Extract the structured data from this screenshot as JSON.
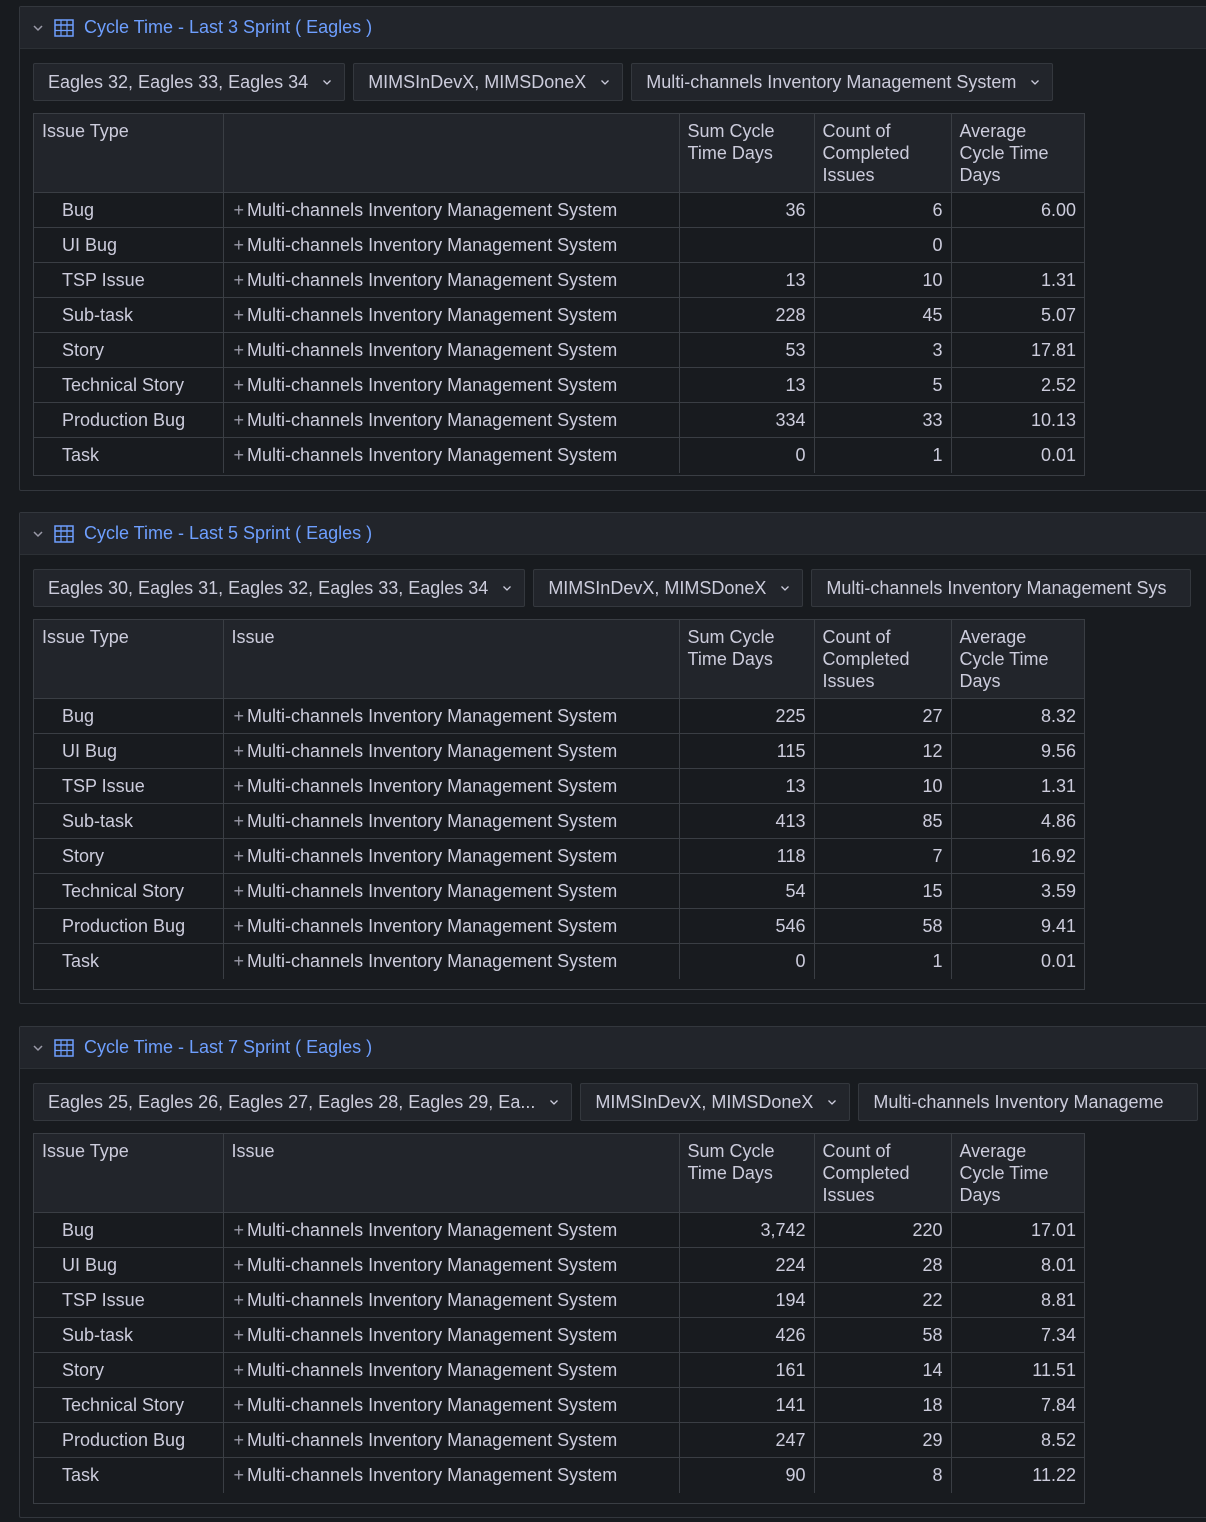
{
  "panels": [
    {
      "title": "Cycle Time - Last 3 Sprint ( Eagles )",
      "filters": [
        "Eagles 32, Eagles 33, Eagles 34",
        "MIMSInDevX, MIMSDoneX",
        "Multi-channels Inventory Management System"
      ],
      "columns": [
        "Issue Type",
        "",
        "Sum Cycle Time Days",
        "Count of Completed Issues",
        "Average Cycle Time Days"
      ],
      "rows": [
        {
          "type": "Bug",
          "issue": "Multi-channels Inventory Management System",
          "sum": "36",
          "count": "6",
          "avg": "6.00"
        },
        {
          "type": "UI Bug",
          "issue": "Multi-channels Inventory Management System",
          "sum": "",
          "count": "0",
          "avg": ""
        },
        {
          "type": "TSP Issue",
          "issue": "Multi-channels Inventory Management System",
          "sum": "13",
          "count": "10",
          "avg": "1.31"
        },
        {
          "type": "Sub-task",
          "issue": "Multi-channels Inventory Management System",
          "sum": "228",
          "count": "45",
          "avg": "5.07"
        },
        {
          "type": "Story",
          "issue": "Multi-channels Inventory Management System",
          "sum": "53",
          "count": "3",
          "avg": "17.81"
        },
        {
          "type": "Technical Story",
          "issue": "Multi-channels Inventory Management System",
          "sum": "13",
          "count": "5",
          "avg": "2.52"
        },
        {
          "type": "Production Bug",
          "issue": "Multi-channels Inventory Management System",
          "sum": "334",
          "count": "33",
          "avg": "10.13"
        },
        {
          "type": "Task",
          "issue": "Multi-channels Inventory Management System",
          "sum": "0",
          "count": "1",
          "avg": "0.01"
        }
      ]
    },
    {
      "title": "Cycle Time - Last 5 Sprint ( Eagles )",
      "filters": [
        "Eagles 30, Eagles 31, Eagles 32, Eagles 33, Eagles 34",
        "MIMSInDevX, MIMSDoneX",
        "Multi-channels Inventory Management Sys"
      ],
      "columns": [
        "Issue Type",
        "Issue",
        "Sum Cycle Time Days",
        "Count of Completed Issues",
        "Average Cycle Time Days"
      ],
      "rows": [
        {
          "type": "Bug",
          "issue": "Multi-channels Inventory Management System",
          "sum": "225",
          "count": "27",
          "avg": "8.32"
        },
        {
          "type": "UI Bug",
          "issue": "Multi-channels Inventory Management System",
          "sum": "115",
          "count": "12",
          "avg": "9.56"
        },
        {
          "type": "TSP Issue",
          "issue": "Multi-channels Inventory Management System",
          "sum": "13",
          "count": "10",
          "avg": "1.31"
        },
        {
          "type": "Sub-task",
          "issue": "Multi-channels Inventory Management System",
          "sum": "413",
          "count": "85",
          "avg": "4.86"
        },
        {
          "type": "Story",
          "issue": "Multi-channels Inventory Management System",
          "sum": "118",
          "count": "7",
          "avg": "16.92"
        },
        {
          "type": "Technical Story",
          "issue": "Multi-channels Inventory Management System",
          "sum": "54",
          "count": "15",
          "avg": "3.59"
        },
        {
          "type": "Production Bug",
          "issue": "Multi-channels Inventory Management System",
          "sum": "546",
          "count": "58",
          "avg": "9.41"
        },
        {
          "type": "Task",
          "issue": "Multi-channels Inventory Management System",
          "sum": "0",
          "count": "1",
          "avg": "0.01"
        }
      ]
    },
    {
      "title": "Cycle Time - Last 7 Sprint ( Eagles )",
      "filters": [
        "Eagles 25, Eagles 26, Eagles 27, Eagles 28, Eagles 29, Ea...",
        "MIMSInDevX, MIMSDoneX",
        "Multi-channels Inventory Manageme"
      ],
      "columns": [
        "Issue Type",
        "Issue",
        "Sum Cycle Time Days",
        "Count of Completed Issues",
        "Average Cycle Time Days"
      ],
      "rows": [
        {
          "type": "Bug",
          "issue": "Multi-channels Inventory Management System",
          "sum": "3,742",
          "count": "220",
          "avg": "17.01"
        },
        {
          "type": "UI Bug",
          "issue": "Multi-channels Inventory Management System",
          "sum": "224",
          "count": "28",
          "avg": "8.01"
        },
        {
          "type": "TSP Issue",
          "issue": "Multi-channels Inventory Management System",
          "sum": "194",
          "count": "22",
          "avg": "8.81"
        },
        {
          "type": "Sub-task",
          "issue": "Multi-channels Inventory Management System",
          "sum": "426",
          "count": "58",
          "avg": "7.34"
        },
        {
          "type": "Story",
          "issue": "Multi-channels Inventory Management System",
          "sum": "161",
          "count": "14",
          "avg": "11.51"
        },
        {
          "type": "Technical Story",
          "issue": "Multi-channels Inventory Management System",
          "sum": "141",
          "count": "18",
          "avg": "7.84"
        },
        {
          "type": "Production Bug",
          "issue": "Multi-channels Inventory Management System",
          "sum": "247",
          "count": "29",
          "avg": "8.52"
        },
        {
          "type": "Task",
          "issue": "Multi-channels Inventory Management System",
          "sum": "90",
          "count": "8",
          "avg": "11.22"
        }
      ]
    }
  ]
}
